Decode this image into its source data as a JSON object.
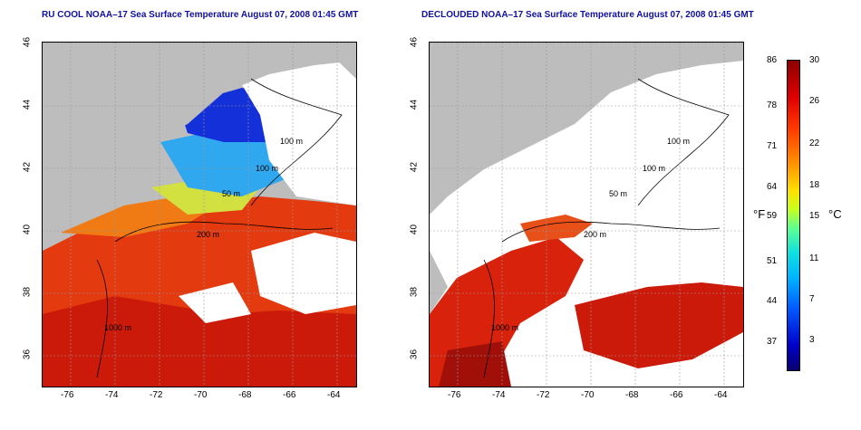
{
  "titles": {
    "left": "RU COOL NOAA–17 Sea Surface Temperature August 07, 2008 01:45 GMT",
    "right": "DECLOUDED NOAA–17 Sea Surface Temperature August 07, 2008 01:45 GMT"
  },
  "axes": {
    "lon_ticks": [
      "-76",
      "-74",
      "-72",
      "-70",
      "-68",
      "-66",
      "-64"
    ],
    "lat_ticks": [
      "46",
      "44",
      "42",
      "40",
      "38",
      "36"
    ]
  },
  "isobaths": {
    "left": [
      "100 m",
      "100 m",
      "50 m",
      "200 m",
      "1000 m"
    ],
    "right": [
      "100 m",
      "100 m",
      "50 m",
      "200 m",
      "1000 m"
    ]
  },
  "colorbar": {
    "fahrenheit": [
      "86",
      "78",
      "71",
      "64",
      "59",
      "51",
      "44",
      "37"
    ],
    "celsius": [
      "30",
      "26",
      "22",
      "18",
      "15",
      "11",
      "7",
      "3"
    ],
    "unit_f": "°F",
    "unit_c": "°C"
  }
}
